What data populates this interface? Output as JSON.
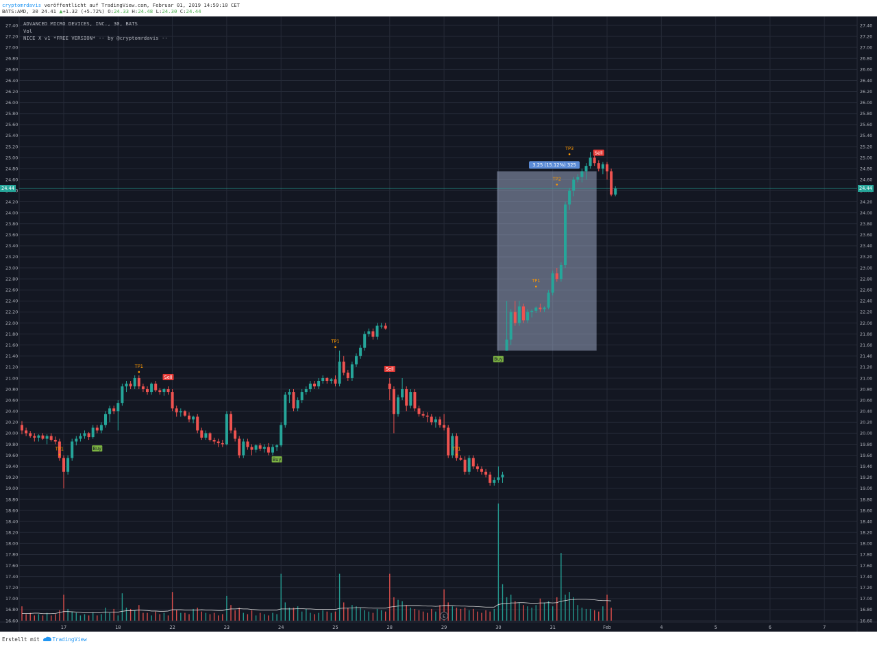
{
  "header": {
    "author": "cryptomrdavis",
    "published_text": " veröffentlicht auf TradingView.com, Februar 01, 2019 14:59:10 CET",
    "symbol_text": "BATS:AMD, 30 24.41",
    "change_arrow": "▲",
    "change_text": "+1.32 (+5.72%)",
    "o_label": "O:",
    "o_value": "24.33",
    "h_label": "H:",
    "h_value": "24.48",
    "l_label": "L:",
    "l_value": "24.30",
    "c_label": "C:",
    "c_value": "24.44"
  },
  "legend": {
    "line1": "ADVANCED MICRO DEVICES, INC., 30, BATS",
    "line2": "Vol",
    "line3": "NICE X v1 *FREE VERSION* -- by @cryptomrdavis --"
  },
  "current_price": "24.44",
  "measure_label": "3.25 (15.12%) 325",
  "earnings_marker": "E",
  "footer": {
    "prefix": "Erstellt mit ",
    "brand": "TradingView"
  },
  "colors": {
    "background": "#131722",
    "grid": "#252a37",
    "up": "#26a69a",
    "down": "#ef5350",
    "buy_badge": "#7cb342",
    "sell_badge": "#e53935",
    "tp": "#ff9800",
    "volume_ma": "#e0e0e0",
    "measure_fill": "#b3c2e0",
    "measure_label_bg": "#5b8bd6"
  },
  "chart_data": {
    "type": "candlestick",
    "symbol": "BATS:AMD",
    "interval": "30",
    "ylim": [
      16.5,
      27.6
    ],
    "y_ticks": [
      "27.40",
      "27.20",
      "27.00",
      "26.80",
      "26.60",
      "26.40",
      "26.20",
      "26.00",
      "25.80",
      "25.60",
      "25.40",
      "25.20",
      "25.00",
      "24.80",
      "24.60",
      "24.40",
      "24.20",
      "24.00",
      "23.80",
      "23.60",
      "23.40",
      "23.20",
      "23.00",
      "22.80",
      "22.60",
      "22.40",
      "22.20",
      "22.00",
      "21.80",
      "21.60",
      "21.40",
      "21.20",
      "21.00",
      "20.80",
      "20.60",
      "20.40",
      "20.20",
      "20.00",
      "19.80",
      "19.60",
      "19.40",
      "19.20",
      "19.00",
      "18.80",
      "18.60",
      "18.40",
      "18.20",
      "18.00",
      "17.80",
      "17.60",
      "17.40",
      "17.20",
      "17.00",
      "16.80",
      "16.60"
    ],
    "x_ticks": [
      {
        "label": "17",
        "idx": 10
      },
      {
        "label": "18",
        "idx": 23
      },
      {
        "label": "22",
        "idx": 36
      },
      {
        "label": "23",
        "idx": 49
      },
      {
        "label": "24",
        "idx": 62
      },
      {
        "label": "25",
        "idx": 75
      },
      {
        "label": "28",
        "idx": 88
      },
      {
        "label": "29",
        "idx": 101
      },
      {
        "label": "30",
        "idx": 114
      },
      {
        "label": "31",
        "idx": 127
      },
      {
        "label": "Feb",
        "idx": 140
      },
      {
        "label": "4",
        "idx": 153
      },
      {
        "label": "5",
        "idx": 166
      },
      {
        "label": "6",
        "idx": 179
      },
      {
        "label": "7",
        "idx": 192
      }
    ],
    "candles": [
      [
        20.15,
        20.22,
        19.98,
        20.05
      ],
      [
        20.05,
        20.1,
        19.95,
        20.0
      ],
      [
        20.0,
        20.04,
        19.92,
        19.95
      ],
      [
        19.95,
        20.0,
        19.85,
        19.92
      ],
      [
        19.92,
        19.98,
        19.85,
        19.96
      ],
      [
        19.96,
        20.0,
        19.88,
        19.9
      ],
      [
        19.9,
        19.98,
        19.8,
        19.95
      ],
      [
        19.95,
        20.0,
        19.85,
        19.88
      ],
      [
        19.88,
        19.94,
        19.8,
        19.85
      ],
      [
        19.85,
        19.9,
        19.5,
        19.55
      ],
      [
        19.55,
        19.6,
        19.0,
        19.3
      ],
      [
        19.3,
        19.6,
        19.25,
        19.55
      ],
      [
        19.55,
        19.9,
        19.5,
        19.85
      ],
      [
        19.85,
        19.95,
        19.78,
        19.9
      ],
      [
        19.9,
        20.0,
        19.85,
        19.95
      ],
      [
        19.95,
        20.05,
        19.9,
        20.0
      ],
      [
        20.0,
        20.02,
        19.88,
        19.93
      ],
      [
        19.93,
        20.15,
        19.9,
        20.1
      ],
      [
        20.1,
        20.15,
        20.0,
        20.05
      ],
      [
        20.05,
        20.2,
        20.0,
        20.15
      ],
      [
        20.15,
        20.4,
        20.1,
        20.35
      ],
      [
        20.35,
        20.5,
        20.2,
        20.45
      ],
      [
        20.45,
        20.5,
        20.35,
        20.4
      ],
      [
        20.4,
        20.6,
        20.05,
        20.55
      ],
      [
        20.55,
        20.9,
        20.5,
        20.85
      ],
      [
        20.85,
        20.95,
        20.75,
        20.9
      ],
      [
        20.9,
        20.95,
        20.8,
        20.85
      ],
      [
        20.85,
        21.05,
        20.8,
        21.0
      ],
      [
        21.0,
        21.05,
        20.8,
        20.85
      ],
      [
        20.85,
        20.9,
        20.75,
        20.8
      ],
      [
        20.8,
        20.85,
        20.7,
        20.75
      ],
      [
        20.75,
        20.92,
        20.7,
        20.9
      ],
      [
        20.9,
        20.95,
        20.75,
        20.78
      ],
      [
        20.78,
        20.82,
        20.7,
        20.75
      ],
      [
        20.75,
        20.82,
        20.68,
        20.8
      ],
      [
        20.8,
        20.85,
        20.7,
        20.75
      ],
      [
        20.75,
        20.8,
        20.4,
        20.45
      ],
      [
        20.45,
        20.5,
        20.3,
        20.38
      ],
      [
        20.38,
        20.45,
        20.3,
        20.4
      ],
      [
        20.4,
        20.42,
        20.3,
        20.32
      ],
      [
        20.32,
        20.38,
        20.2,
        20.25
      ],
      [
        20.25,
        20.32,
        20.18,
        20.3
      ],
      [
        20.3,
        20.35,
        20.0,
        20.05
      ],
      [
        20.05,
        20.1,
        19.88,
        19.92
      ],
      [
        19.92,
        20.05,
        19.88,
        20.0
      ],
      [
        20.0,
        20.02,
        19.85,
        19.88
      ],
      [
        19.88,
        19.92,
        19.8,
        19.85
      ],
      [
        19.85,
        19.9,
        19.75,
        19.82
      ],
      [
        19.82,
        19.88,
        19.75,
        19.8
      ],
      [
        19.8,
        20.4,
        19.78,
        20.35
      ],
      [
        20.35,
        20.4,
        20.0,
        20.05
      ],
      [
        20.05,
        20.1,
        19.85,
        19.9
      ],
      [
        19.9,
        19.95,
        19.55,
        19.6
      ],
      [
        19.6,
        19.9,
        19.55,
        19.85
      ],
      [
        19.85,
        19.9,
        19.7,
        19.75
      ],
      [
        19.75,
        19.8,
        19.6,
        19.7
      ],
      [
        19.7,
        19.8,
        19.65,
        19.78
      ],
      [
        19.78,
        19.82,
        19.68,
        19.72
      ],
      [
        19.72,
        19.8,
        19.65,
        19.75
      ],
      [
        19.75,
        19.82,
        19.6,
        19.65
      ],
      [
        19.65,
        19.8,
        19.6,
        19.75
      ],
      [
        19.75,
        19.8,
        19.68,
        19.78
      ],
      [
        19.78,
        20.2,
        19.75,
        20.15
      ],
      [
        20.15,
        20.75,
        20.1,
        20.7
      ],
      [
        20.7,
        20.8,
        20.55,
        20.75
      ],
      [
        20.75,
        20.8,
        20.4,
        20.45
      ],
      [
        20.45,
        20.65,
        20.4,
        20.6
      ],
      [
        20.6,
        20.8,
        20.55,
        20.75
      ],
      [
        20.75,
        20.85,
        20.7,
        20.8
      ],
      [
        20.8,
        20.95,
        20.75,
        20.9
      ],
      [
        20.9,
        20.95,
        20.8,
        20.85
      ],
      [
        20.85,
        21.0,
        20.8,
        20.95
      ],
      [
        20.95,
        21.05,
        20.9,
        21.0
      ],
      [
        21.0,
        21.02,
        20.9,
        20.95
      ],
      [
        20.95,
        21.0,
        20.9,
        20.98
      ],
      [
        20.98,
        21.05,
        20.85,
        20.9
      ],
      [
        20.9,
        21.5,
        20.85,
        21.3
      ],
      [
        21.3,
        21.4,
        21.05,
        21.1
      ],
      [
        21.1,
        21.15,
        20.95,
        21.0
      ],
      [
        21.0,
        21.3,
        20.95,
        21.25
      ],
      [
        21.25,
        21.45,
        21.2,
        21.4
      ],
      [
        21.4,
        21.6,
        21.35,
        21.55
      ],
      [
        21.55,
        21.85,
        21.5,
        21.8
      ],
      [
        21.8,
        21.9,
        21.75,
        21.85
      ],
      [
        21.85,
        21.9,
        21.7,
        21.75
      ],
      [
        21.75,
        22.0,
        21.7,
        21.95
      ],
      [
        21.95,
        22.0,
        21.9,
        21.95
      ],
      [
        21.95,
        22.0,
        21.88,
        21.9
      ],
      [
        20.9,
        21.0,
        20.6,
        20.8
      ],
      [
        20.8,
        20.85,
        20.0,
        20.35
      ],
      [
        20.35,
        20.7,
        20.3,
        20.65
      ],
      [
        20.65,
        21.0,
        20.6,
        20.8
      ],
      [
        20.8,
        20.85,
        20.4,
        20.5
      ],
      [
        20.5,
        20.8,
        20.45,
        20.75
      ],
      [
        20.75,
        20.8,
        20.4,
        20.45
      ],
      [
        20.45,
        20.5,
        20.3,
        20.35
      ],
      [
        20.35,
        20.4,
        20.28,
        20.32
      ],
      [
        20.32,
        20.38,
        20.2,
        20.3
      ],
      [
        20.3,
        20.35,
        20.15,
        20.2
      ],
      [
        20.2,
        20.3,
        20.1,
        20.25
      ],
      [
        20.25,
        20.3,
        20.1,
        20.15
      ],
      [
        20.15,
        20.35,
        20.05,
        20.1
      ],
      [
        20.1,
        20.15,
        19.55,
        19.6
      ],
      [
        19.6,
        20.0,
        19.55,
        19.95
      ],
      [
        19.95,
        20.0,
        19.5,
        19.55
      ],
      [
        19.55,
        19.6,
        19.5,
        19.52
      ],
      [
        19.52,
        19.58,
        19.25,
        19.3
      ],
      [
        19.3,
        19.6,
        19.25,
        19.55
      ],
      [
        19.55,
        19.6,
        19.35,
        19.4
      ],
      [
        19.4,
        19.45,
        19.3,
        19.35
      ],
      [
        19.35,
        19.4,
        19.25,
        19.3
      ],
      [
        19.3,
        19.35,
        19.2,
        19.25
      ],
      [
        19.25,
        19.3,
        19.05,
        19.1
      ],
      [
        19.1,
        19.2,
        19.05,
        19.15
      ],
      [
        19.15,
        19.4,
        19.1,
        19.2
      ],
      [
        19.2,
        19.3,
        19.1,
        19.25
      ],
      [
        21.5,
        22.4,
        21.5,
        21.7
      ],
      [
        21.7,
        22.25,
        21.6,
        22.2
      ],
      [
        22.2,
        22.4,
        21.95,
        22.0
      ],
      [
        22.0,
        22.4,
        21.95,
        22.3
      ],
      [
        22.3,
        22.35,
        22.0,
        22.05
      ],
      [
        22.05,
        22.25,
        22.0,
        22.2
      ],
      [
        22.2,
        22.25,
        22.1,
        22.22
      ],
      [
        22.22,
        22.3,
        22.18,
        22.28
      ],
      [
        22.28,
        22.35,
        22.2,
        22.25
      ],
      [
        22.25,
        22.3,
        22.2,
        22.28
      ],
      [
        22.28,
        22.6,
        22.25,
        22.55
      ],
      [
        22.55,
        22.95,
        22.5,
        22.9
      ],
      [
        22.9,
        23.0,
        22.75,
        22.8
      ],
      [
        22.8,
        23.1,
        22.75,
        23.05
      ],
      [
        23.05,
        24.2,
        23.0,
        24.15
      ],
      [
        24.15,
        24.45,
        24.05,
        24.4
      ],
      [
        24.4,
        24.65,
        24.3,
        24.6
      ],
      [
        24.6,
        24.7,
        24.55,
        24.65
      ],
      [
        24.65,
        24.8,
        24.55,
        24.75
      ],
      [
        24.75,
        24.9,
        24.6,
        24.85
      ],
      [
        24.85,
        25.1,
        24.8,
        25.0
      ],
      [
        25.0,
        25.05,
        24.85,
        24.9
      ],
      [
        24.9,
        24.95,
        24.75,
        24.8
      ],
      [
        24.8,
        24.92,
        24.7,
        24.88
      ],
      [
        24.88,
        24.92,
        24.6,
        24.75
      ],
      [
        24.75,
        24.8,
        24.3,
        24.33
      ],
      [
        24.33,
        24.48,
        24.3,
        24.44
      ]
    ],
    "volume": [
      0.55,
      0.25,
      0.3,
      0.2,
      0.25,
      0.2,
      0.3,
      0.2,
      0.25,
      0.4,
      1.0,
      0.45,
      0.35,
      0.3,
      0.2,
      0.25,
      0.2,
      0.3,
      0.2,
      0.25,
      0.5,
      0.3,
      0.45,
      0.2,
      1.05,
      0.5,
      0.45,
      0.4,
      0.6,
      0.3,
      0.3,
      0.2,
      0.35,
      0.25,
      0.3,
      0.2,
      1.1,
      0.4,
      0.3,
      0.3,
      0.25,
      0.45,
      0.5,
      0.35,
      0.3,
      0.25,
      0.3,
      0.2,
      0.25,
      0.95,
      0.6,
      0.4,
      0.5,
      0.3,
      0.25,
      0.4,
      0.2,
      0.3,
      0.25,
      0.2,
      0.3,
      0.25,
      1.8,
      0.7,
      0.5,
      0.5,
      0.55,
      0.35,
      0.45,
      0.3,
      0.25,
      0.3,
      0.4,
      0.35,
      0.3,
      0.35,
      1.8,
      0.7,
      0.5,
      0.6,
      0.55,
      0.5,
      0.4,
      0.35,
      0.3,
      0.45,
      0.4,
      0.35,
      1.8,
      0.9,
      0.8,
      0.75,
      0.6,
      0.5,
      0.45,
      0.4,
      0.35,
      0.3,
      0.45,
      0.35,
      0.6,
      1.2,
      0.7,
      0.55,
      0.5,
      0.45,
      0.5,
      0.4,
      0.45,
      0.35,
      0.3,
      0.4,
      0.35,
      0.45,
      4.5,
      1.4,
      0.9,
      1.0,
      0.75,
      0.7,
      0.6,
      0.55,
      0.5,
      0.6,
      0.85,
      0.7,
      0.75,
      0.55,
      0.9,
      2.6,
      1.0,
      1.1,
      0.9,
      0.6,
      0.5,
      0.45,
      0.45,
      0.4,
      0.35,
      0.55,
      1.0,
      0.5
    ],
    "volume_ma": [
      0.28,
      0.28,
      0.28,
      0.29,
      0.29,
      0.27,
      0.27,
      0.27,
      0.28,
      0.31,
      0.35,
      0.35,
      0.34,
      0.33,
      0.32,
      0.3,
      0.3,
      0.31,
      0.3,
      0.31,
      0.33,
      0.32,
      0.33,
      0.33,
      0.36,
      0.38,
      0.38,
      0.39,
      0.41,
      0.4,
      0.39,
      0.37,
      0.37,
      0.36,
      0.36,
      0.37,
      0.42,
      0.42,
      0.42,
      0.41,
      0.41,
      0.41,
      0.41,
      0.42,
      0.41,
      0.41,
      0.4,
      0.39,
      0.39,
      0.43,
      0.45,
      0.45,
      0.46,
      0.45,
      0.45,
      0.43,
      0.42,
      0.41,
      0.41,
      0.41,
      0.41,
      0.41,
      0.45,
      0.45,
      0.45,
      0.45,
      0.46,
      0.46,
      0.45,
      0.45,
      0.44,
      0.43,
      0.43,
      0.43,
      0.43,
      0.43,
      0.47,
      0.48,
      0.48,
      0.49,
      0.5,
      0.5,
      0.5,
      0.49,
      0.48,
      0.48,
      0.48,
      0.48,
      0.52,
      0.54,
      0.56,
      0.57,
      0.58,
      0.58,
      0.58,
      0.58,
      0.57,
      0.56,
      0.56,
      0.55,
      0.56,
      0.58,
      0.58,
      0.58,
      0.57,
      0.56,
      0.56,
      0.55,
      0.55,
      0.54,
      0.53,
      0.52,
      0.52,
      0.52,
      0.62,
      0.65,
      0.66,
      0.68,
      0.68,
      0.69,
      0.69,
      0.68,
      0.67,
      0.67,
      0.68,
      0.68,
      0.69,
      0.68,
      0.69,
      0.75,
      0.77,
      0.8,
      0.81,
      0.82,
      0.82,
      0.82,
      0.81,
      0.8,
      0.78,
      0.77,
      0.77,
      0.76
    ],
    "signals": [
      {
        "label": "Buy",
        "idx": 18,
        "price": 19.88,
        "pos": "below",
        "kind": "buy"
      },
      {
        "label": "TP1",
        "idx": 9,
        "price": 19.55,
        "pos": "above",
        "kind": "tp"
      },
      {
        "label": "TP1",
        "idx": 28,
        "price": 21.05,
        "pos": "above",
        "kind": "tp"
      },
      {
        "label": "Sell",
        "idx": 35,
        "price": 20.85,
        "pos": "above",
        "kind": "sell"
      },
      {
        "label": "Buy",
        "idx": 61,
        "price": 19.68,
        "pos": "below",
        "kind": "buy"
      },
      {
        "label": "TP1",
        "idx": 75,
        "price": 21.5,
        "pos": "above",
        "kind": "tp"
      },
      {
        "label": "Sell",
        "idx": 88,
        "price": 21.0,
        "pos": "above",
        "kind": "sell"
      },
      {
        "label": "TP1",
        "idx": 104,
        "price": 19.55,
        "pos": "above",
        "kind": "tp"
      },
      {
        "label": "Buy",
        "idx": 114,
        "price": 21.5,
        "pos": "below",
        "kind": "buy"
      },
      {
        "label": "TP1",
        "idx": 123,
        "price": 22.6,
        "pos": "above",
        "kind": "tp"
      },
      {
        "label": "TP2",
        "idx": 128,
        "price": 24.45,
        "pos": "above",
        "kind": "tp"
      },
      {
        "label": "TP3",
        "idx": 131,
        "price": 25.0,
        "pos": "above",
        "kind": "tp"
      },
      {
        "label": "Sell",
        "idx": 138,
        "price": 24.92,
        "pos": "above",
        "kind": "sell"
      }
    ],
    "measure": {
      "start_idx": 114,
      "end_idx": 137,
      "from_price": 21.5,
      "to_price": 24.75
    },
    "earnings_idx": 101,
    "last_price": 24.44
  }
}
